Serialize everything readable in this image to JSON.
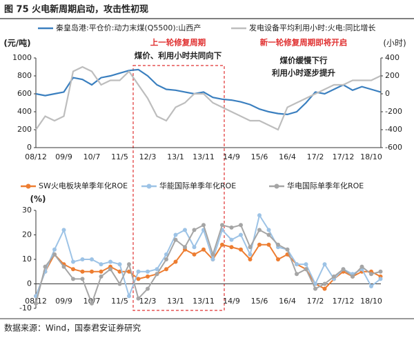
{
  "title": "图 75 火电新周期启动，攻击性初现",
  "source": "数据来源：Wind，国泰君安证券研究",
  "chart_data": [
    {
      "type": "line",
      "categories": [
        "08/12",
        null,
        null,
        "09/9",
        null,
        null,
        "10/7",
        null,
        null,
        "11/5",
        null,
        null,
        "12/3",
        null,
        null,
        "13/1",
        null,
        null,
        "13/11",
        null,
        null,
        "14/9",
        null,
        null,
        "15/6",
        null,
        null,
        "16/4",
        null,
        null,
        "17/2",
        null,
        null,
        "17/12",
        null,
        null,
        "18/10",
        null
      ],
      "ylabel": "(元/吨)",
      "y2label": "(小时)",
      "ylim": [
        0,
        1000
      ],
      "yticks": [
        0,
        200,
        400,
        600,
        800,
        1000
      ],
      "y2lim": [
        -600,
        400
      ],
      "y2ticks": [
        -600,
        -400,
        -200,
        0,
        200,
        400
      ],
      "annotations": [
        "上一轮修复周期",
        "煤价、利用小时共同向下",
        "新一轮修复周期即将开启",
        "煤价缓慢下行",
        "利用小时逐步提升"
      ],
      "series": [
        {
          "name": "秦皇岛港:平仓价:动力末煤(Q5500):山西产",
          "color": "#3a7fbf",
          "values": [
            600,
            580,
            600,
            620,
            780,
            760,
            700,
            780,
            800,
            830,
            860,
            870,
            800,
            700,
            650,
            640,
            620,
            600,
            620,
            560,
            540,
            530,
            510,
            480,
            430,
            400,
            380,
            370,
            400,
            500,
            620,
            600,
            650,
            700,
            640,
            680,
            650,
            620
          ]
        },
        {
          "name": "发电设备平均利用小时:火电:同比增长",
          "color": "#bdbdbd",
          "axis": "y2",
          "values": [
            -400,
            -250,
            -300,
            -250,
            250,
            300,
            250,
            100,
            150,
            150,
            250,
            100,
            -50,
            -250,
            -300,
            -150,
            -100,
            0,
            0,
            -100,
            -150,
            -200,
            -250,
            -300,
            -300,
            -350,
            -400,
            -150,
            -100,
            -50,
            0,
            50,
            100,
            100,
            150,
            150,
            150,
            200
          ]
        }
      ]
    },
    {
      "type": "line",
      "categories": [
        "08/12",
        null,
        null,
        "09/9",
        null,
        null,
        "10/7",
        null,
        null,
        "11/5",
        null,
        null,
        "12/3",
        null,
        null,
        "13/1",
        null,
        null,
        "13/11",
        null,
        null,
        "14/9",
        null,
        null,
        "15/6",
        null,
        null,
        "16/4",
        null,
        null,
        "17/2",
        null,
        null,
        "17/12",
        null,
        null,
        "18/10",
        null
      ],
      "ylabel": "(%)",
      "ylim": [
        -10,
        30
      ],
      "yticks": [
        -10,
        0,
        10,
        20,
        30
      ],
      "series": [
        {
          "name": "SW火电板块单季年化ROE",
          "color": "#ed7d31",
          "values": [
            -5,
            5,
            12,
            8,
            6,
            5,
            5,
            5,
            7,
            5,
            5,
            2,
            3,
            4,
            6,
            9,
            14,
            12,
            14,
            10,
            16,
            15,
            14,
            10,
            16,
            16,
            10,
            12,
            8,
            6,
            0,
            -2,
            2,
            5,
            3,
            5,
            5,
            3
          ]
        },
        {
          "name": "华能国际单季年化ROE",
          "color": "#9dc3e6",
          "values": [
            -5,
            5,
            14,
            22,
            9,
            10,
            10,
            8,
            9,
            8,
            -5,
            5,
            5,
            6,
            12,
            20,
            22,
            15,
            22,
            10,
            22,
            18,
            20,
            12,
            28,
            22,
            15,
            14,
            8,
            8,
            0,
            8,
            2,
            6,
            4,
            6,
            -1,
            2
          ]
        },
        {
          "name": "华电国际单季年化ROE",
          "color": "#a5a5a5",
          "values": [
            -8,
            7,
            12,
            7,
            2,
            2,
            -8,
            3,
            6,
            0,
            8,
            -6,
            -2,
            4,
            10,
            18,
            15,
            22,
            24,
            12,
            24,
            23,
            24,
            15,
            22,
            20,
            16,
            14,
            4,
            6,
            -2,
            0,
            3,
            6,
            3,
            7,
            4,
            5
          ]
        }
      ]
    }
  ]
}
